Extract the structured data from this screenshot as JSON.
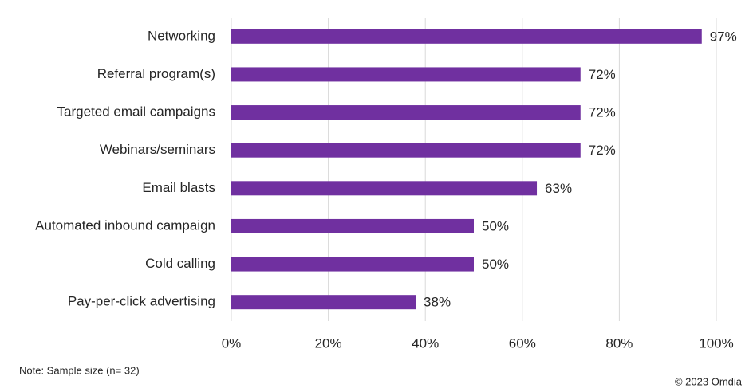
{
  "chart_data": {
    "type": "bar",
    "orientation": "horizontal",
    "categories": [
      "Networking",
      "Referral program(s)",
      "Targeted email campaigns",
      "Webinars/seminars",
      "Email blasts",
      "Automated inbound campaign",
      "Cold calling",
      "Pay-per-click advertising"
    ],
    "values": [
      97,
      72,
      72,
      72,
      63,
      50,
      50,
      38
    ],
    "value_labels": [
      "97%",
      "72%",
      "72%",
      "72%",
      "63%",
      "50%",
      "50%",
      "38%"
    ],
    "color": "#7030a0",
    "xlim": [
      0,
      100
    ],
    "xticks": [
      {
        "value": 0,
        "label": "0%"
      },
      {
        "value": 20,
        "label": "20%"
      },
      {
        "value": 40,
        "label": "40%"
      },
      {
        "value": 60,
        "label": "60%"
      },
      {
        "value": 80,
        "label": "80%"
      },
      {
        "value": 100,
        "label": "100%"
      }
    ],
    "grid": true,
    "note": "Note: Sample size (n= 32)",
    "source": "© 2023 Omdia"
  }
}
